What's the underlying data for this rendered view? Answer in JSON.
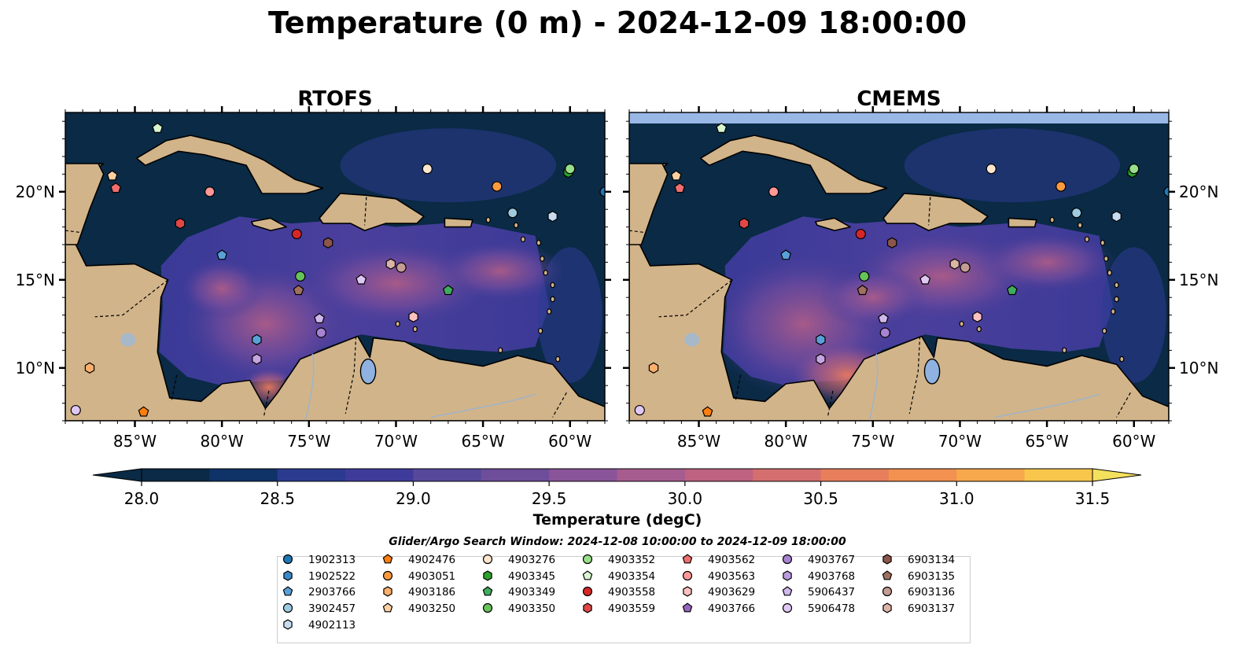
{
  "chart_data": {
    "type": "heatmap",
    "title": "Temperature (0 m) - 2024-12-09 18:00:00",
    "panels": [
      {
        "title": "RTOFS",
        "lon_range": [
          -89,
          -58
        ],
        "lat_range": [
          7,
          24.5
        ],
        "lat_tick_side": "left"
      },
      {
        "title": "CMEMS",
        "lon_range": [
          -89,
          -58
        ],
        "lat_range": [
          7,
          24.5
        ],
        "lat_tick_side": "right"
      }
    ],
    "x_ticks": [
      "85°W",
      "80°W",
      "75°W",
      "70°W",
      "65°W",
      "60°W"
    ],
    "x_tick_values": [
      -85,
      -80,
      -75,
      -70,
      -65,
      -60
    ],
    "y_ticks": [
      "20°N",
      "15°N",
      "10°N"
    ],
    "y_tick_values": [
      20,
      15,
      10
    ],
    "colorbar": {
      "label": "Temperature (degC)",
      "min": 28.0,
      "max": 31.5,
      "step": 0.25,
      "tick_labels": [
        "28.0",
        "28.5",
        "29.0",
        "29.5",
        "30.0",
        "30.5",
        "31.0",
        "31.5"
      ],
      "colors": [
        "#0a2a45",
        "#0f3366",
        "#2b3a8f",
        "#3f3b9a",
        "#57489c",
        "#6e4d9b",
        "#8a5499",
        "#a65c8f",
        "#bd6280",
        "#d56e6e",
        "#e87f5c",
        "#f29150",
        "#f7a84c",
        "#f9c64c",
        "#f4e05c"
      ],
      "extend": "both"
    },
    "legend_title": "Glider/Argo Search Window: 2024-12-08 10:00:00 to 2024-12-09 18:00:00",
    "series": [
      {
        "name": "1902313",
        "marker": "circle",
        "color": "#1f77b4",
        "lon": -58,
        "lat": 20.0
      },
      {
        "name": "1902522",
        "marker": "hexagon",
        "color": "#3a88c8",
        "lon": null,
        "lat": null
      },
      {
        "name": "2903766",
        "marker": "pentagon",
        "color": "#5aa0d8",
        "lon": -80.0,
        "lat": 16.4
      },
      {
        "name": "3902457",
        "marker": "circle",
        "color": "#9ecae1",
        "lon": -63.3,
        "lat": 18.8
      },
      {
        "name": "4902113",
        "marker": "hexagon",
        "color": "#c6dbef",
        "lon": -61.0,
        "lat": 18.6
      },
      {
        "name": "4902476",
        "marker": "pentagon",
        "color": "#ff7f0e",
        "lon": -84.5,
        "lat": 7.5
      },
      {
        "name": "4903051",
        "marker": "circle",
        "color": "#fd9a3e",
        "lon": -64.2,
        "lat": 20.3
      },
      {
        "name": "4903186",
        "marker": "hexagon",
        "color": "#fdae6b",
        "lon": -87.6,
        "lat": 10.0
      },
      {
        "name": "4903250",
        "marker": "pentagon",
        "color": "#fdd0a2",
        "lon": -86.3,
        "lat": 20.9
      },
      {
        "name": "4903276",
        "marker": "circle",
        "color": "#fee6ce",
        "lon": -68.2,
        "lat": 21.3
      },
      {
        "name": "4903345",
        "marker": "hexagon",
        "color": "#2ca02c",
        "lon": -60.1,
        "lat": 21.1
      },
      {
        "name": "4903349",
        "marker": "pentagon",
        "color": "#41ab5d",
        "lon": -67.0,
        "lat": 14.4
      },
      {
        "name": "4903350",
        "marker": "circle",
        "color": "#66c35a",
        "lon": -75.5,
        "lat": 15.2
      },
      {
        "name": "4903352",
        "marker": "circle",
        "color": "#98df8a",
        "lon": -60.0,
        "lat": 21.3
      },
      {
        "name": "4903354",
        "marker": "pentagon",
        "color": "#d9f5d0",
        "lon": -83.7,
        "lat": 23.6
      },
      {
        "name": "4903558",
        "marker": "circle",
        "color": "#d62728",
        "lon": -75.7,
        "lat": 17.6
      },
      {
        "name": "4903559",
        "marker": "hexagon",
        "color": "#e04848",
        "lon": -82.4,
        "lat": 18.2
      },
      {
        "name": "4903562",
        "marker": "pentagon",
        "color": "#f06e6e",
        "lon": -86.1,
        "lat": 20.2
      },
      {
        "name": "4903563",
        "marker": "circle",
        "color": "#ff9896",
        "lon": -80.7,
        "lat": 20.0
      },
      {
        "name": "4903629",
        "marker": "hexagon",
        "color": "#ffc0c0",
        "lon": -69.0,
        "lat": 12.9
      },
      {
        "name": "4903766",
        "marker": "pentagon",
        "color": "#9467bd",
        "lon": null,
        "lat": null
      },
      {
        "name": "4903767",
        "marker": "circle",
        "color": "#a883d2",
        "lon": -74.3,
        "lat": 12.0
      },
      {
        "name": "4903768",
        "marker": "hexagon",
        "color": "#bb9be0",
        "lon": null,
        "lat": null
      },
      {
        "name": "5906437",
        "marker": "pentagon",
        "color": "#d0b8ec",
        "lon": -74.4,
        "lat": 12.8
      },
      {
        "name": "5906478",
        "marker": "circle",
        "color": "#e0c8f4",
        "lon": -88.4,
        "lat": 7.6
      },
      {
        "name": "6903134",
        "marker": "hexagon",
        "color": "#8c564b",
        "lon": -73.9,
        "lat": 17.1
      },
      {
        "name": "6903135",
        "marker": "pentagon",
        "color": "#a0705f",
        "lon": -75.6,
        "lat": 14.4
      },
      {
        "name": "6903136",
        "marker": "circle",
        "color": "#c49c94",
        "lon": -69.7,
        "lat": 15.7
      },
      {
        "name": "6903137",
        "marker": "hexagon",
        "color": "#ddb3a8",
        "lon": -70.3,
        "lat": 15.9
      }
    ],
    "extra_markers": [
      {
        "marker": "pentagon",
        "color": "#e0c8f4",
        "lon": -72.0,
        "lat": 15.0
      },
      {
        "marker": "hexagon",
        "color": "#c6a4e4",
        "lon": -78.0,
        "lat": 10.5
      },
      {
        "marker": "hexagon",
        "color": "#5aa0d8",
        "lon": -78.0,
        "lat": 11.6
      }
    ]
  },
  "colors": {
    "land": "#d2b48a",
    "ocean_deep": "#0a2a45",
    "lake": "#8fb2e0",
    "cmems_top_band": "#9ab8e6"
  }
}
